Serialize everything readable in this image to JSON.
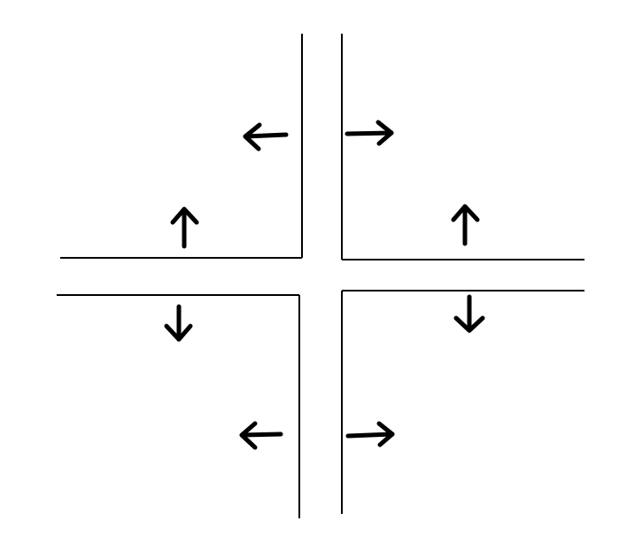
{
  "diagram": {
    "colors": {
      "background": "#ffffff",
      "stroke": "#000000"
    },
    "quadrants": [
      {
        "position": "top-left",
        "arrows": [
          "left-arrow-icon",
          "up-arrow-icon"
        ]
      },
      {
        "position": "top-right",
        "arrows": [
          "right-arrow-icon",
          "up-arrow-icon"
        ]
      },
      {
        "position": "bottom-left",
        "arrows": [
          "down-arrow-icon",
          "left-arrow-icon"
        ]
      },
      {
        "position": "bottom-right",
        "arrows": [
          "down-arrow-icon",
          "right-arrow-icon"
        ]
      }
    ]
  }
}
